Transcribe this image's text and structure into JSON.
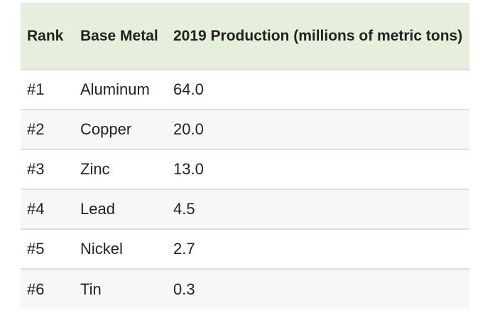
{
  "table": {
    "headers": {
      "rank": "Rank",
      "metal": "Base Metal",
      "production": "2019 Production (millions of metric tons)"
    },
    "rows": [
      {
        "rank": "#1",
        "metal": "Aluminum",
        "production": "64.0"
      },
      {
        "rank": "#2",
        "metal": "Copper",
        "production": "20.0"
      },
      {
        "rank": "#3",
        "metal": "Zinc",
        "production": "13.0"
      },
      {
        "rank": "#4",
        "metal": "Lead",
        "production": "4.5"
      },
      {
        "rank": "#5",
        "metal": "Nickel",
        "production": "2.7"
      },
      {
        "rank": "#6",
        "metal": "Tin",
        "production": "0.3"
      }
    ]
  },
  "colors": {
    "header_bg": "#e5efdb",
    "row_alt_bg": "#f7f7f7",
    "border": "#dedede"
  }
}
